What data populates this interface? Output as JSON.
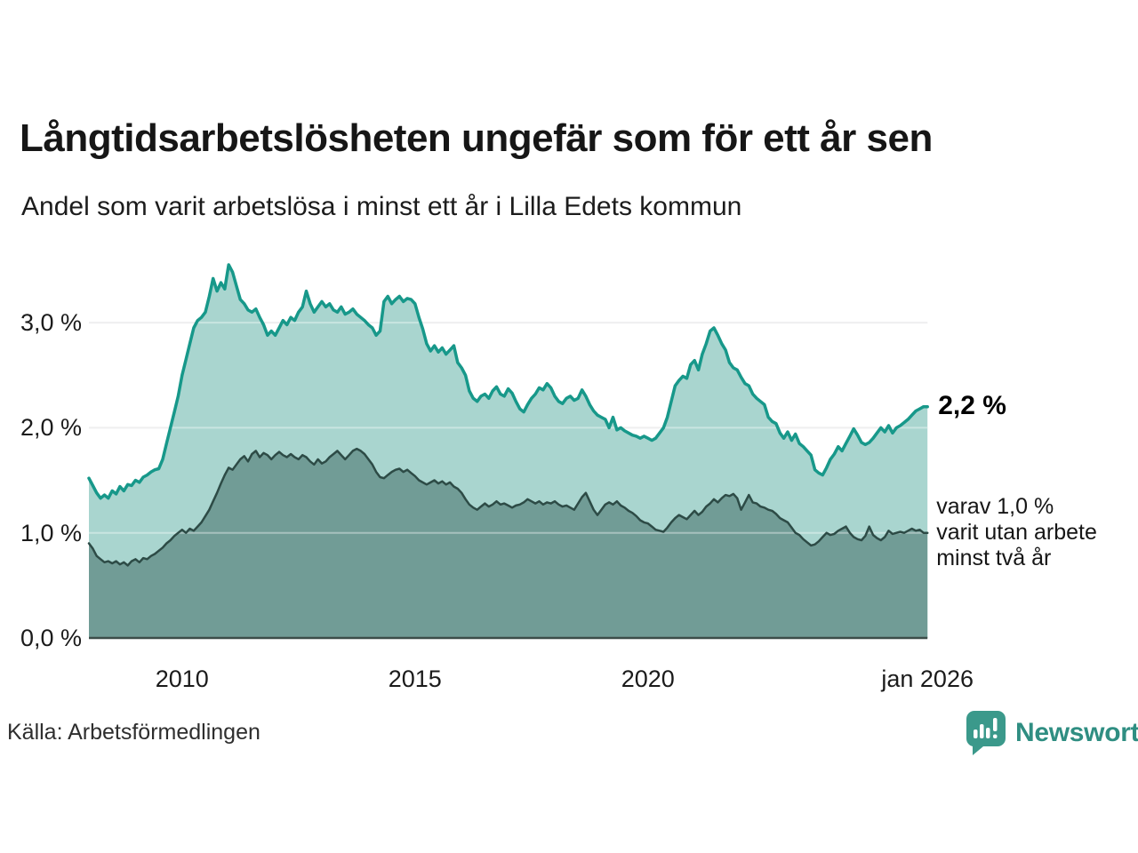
{
  "header": {
    "title": "Långtidsarbetslösheten ungefär som för ett år sen",
    "subtitle": "Andel som varit arbetslösa i minst ett år i Lilla Edets kommun"
  },
  "footer": {
    "source": "Källa: Arbetsförmedlingen",
    "brand": "Newsworthy",
    "brand_color": "#2f8e82"
  },
  "chart_data": {
    "type": "area",
    "title": "Långtidsarbetslösheten ungefär som för ett år sen",
    "subtitle": "Andel som varit arbetslösa i minst ett år i Lilla Edets kommun",
    "unit": "%",
    "frequency": "monthly",
    "x_start": "2008-01",
    "x_end": "2026-01",
    "ylim": [
      0,
      3.8
    ],
    "grid": true,
    "legend_position": "direct-labels-right",
    "x_ticks": [
      {
        "value": 2010,
        "label": "2010"
      },
      {
        "value": 2015,
        "label": "2015"
      },
      {
        "value": 2020,
        "label": "2020"
      },
      {
        "value": 2026,
        "label": "jan 2026"
      }
    ],
    "y_ticks": [
      {
        "value": 0,
        "label": "0,0 %"
      },
      {
        "value": 1,
        "label": "1,0 %"
      },
      {
        "value": 2,
        "label": "2,0 %"
      },
      {
        "value": 3,
        "label": "3,0 %"
      }
    ],
    "colors": {
      "grid": "#e5e5e7",
      "grid_over_fill": "rgba(255,255,255,0.38)",
      "baseline": "#3c4d49"
    },
    "series": [
      {
        "name": "Andel arbetslösa minst ett år",
        "line_color": "#17988a",
        "fill_color": "#a9d5cf",
        "line_width": 3.5,
        "end_label": "2,2 %",
        "values": [
          1.52,
          1.45,
          1.38,
          1.33,
          1.36,
          1.33,
          1.4,
          1.37,
          1.44,
          1.4,
          1.46,
          1.45,
          1.5,
          1.48,
          1.53,
          1.55,
          1.58,
          1.6,
          1.61,
          1.7,
          1.85,
          2.0,
          2.15,
          2.3,
          2.5,
          2.65,
          2.8,
          2.95,
          3.02,
          3.05,
          3.1,
          3.25,
          3.42,
          3.3,
          3.38,
          3.32,
          3.55,
          3.48,
          3.35,
          3.22,
          3.18,
          3.12,
          3.1,
          3.13,
          3.05,
          2.98,
          2.88,
          2.92,
          2.88,
          2.95,
          3.02,
          2.98,
          3.05,
          3.02,
          3.1,
          3.15,
          3.3,
          3.18,
          3.1,
          3.15,
          3.2,
          3.15,
          3.18,
          3.12,
          3.1,
          3.15,
          3.08,
          3.1,
          3.13,
          3.08,
          3.05,
          3.02,
          2.98,
          2.95,
          2.88,
          2.92,
          3.2,
          3.25,
          3.18,
          3.22,
          3.25,
          3.2,
          3.23,
          3.22,
          3.18,
          3.05,
          2.94,
          2.8,
          2.73,
          2.78,
          2.72,
          2.76,
          2.7,
          2.74,
          2.78,
          2.62,
          2.57,
          2.5,
          2.35,
          2.28,
          2.25,
          2.3,
          2.32,
          2.28,
          2.35,
          2.39,
          2.32,
          2.3,
          2.37,
          2.33,
          2.25,
          2.18,
          2.15,
          2.22,
          2.28,
          2.32,
          2.38,
          2.36,
          2.42,
          2.38,
          2.3,
          2.25,
          2.23,
          2.28,
          2.3,
          2.26,
          2.28,
          2.36,
          2.3,
          2.22,
          2.16,
          2.12,
          2.1,
          2.08,
          2.0,
          2.1,
          1.98,
          2.0,
          1.97,
          1.95,
          1.93,
          1.92,
          1.9,
          1.92,
          1.9,
          1.88,
          1.9,
          1.95,
          2.0,
          2.1,
          2.25,
          2.4,
          2.45,
          2.49,
          2.47,
          2.6,
          2.64,
          2.55,
          2.7,
          2.8,
          2.92,
          2.95,
          2.88,
          2.8,
          2.74,
          2.62,
          2.57,
          2.55,
          2.48,
          2.42,
          2.4,
          2.32,
          2.28,
          2.25,
          2.22,
          2.1,
          2.06,
          2.04,
          1.95,
          1.9,
          1.96,
          1.88,
          1.94,
          1.85,
          1.82,
          1.78,
          1.74,
          1.6,
          1.57,
          1.55,
          1.62,
          1.7,
          1.75,
          1.82,
          1.78,
          1.85,
          1.92,
          1.99,
          1.93,
          1.86,
          1.84,
          1.86,
          1.9,
          1.95,
          2.0,
          1.96,
          2.02,
          1.95,
          2.0,
          2.02,
          2.05,
          2.08,
          2.12,
          2.16,
          2.18,
          2.2,
          2.2
        ]
      },
      {
        "name": "varav utan arbete minst två år",
        "line_color": "#2d4b46",
        "fill_color": "#719c96",
        "line_width": 2.5,
        "end_label_lines": [
          "varav 1,0 %",
          "varit utan arbete",
          "minst två år"
        ],
        "values": [
          0.9,
          0.85,
          0.78,
          0.75,
          0.72,
          0.73,
          0.71,
          0.73,
          0.7,
          0.72,
          0.69,
          0.73,
          0.75,
          0.72,
          0.76,
          0.75,
          0.78,
          0.8,
          0.83,
          0.86,
          0.9,
          0.93,
          0.97,
          1.0,
          1.03,
          1.0,
          1.04,
          1.02,
          1.06,
          1.1,
          1.16,
          1.22,
          1.3,
          1.38,
          1.47,
          1.55,
          1.62,
          1.6,
          1.65,
          1.7,
          1.73,
          1.68,
          1.75,
          1.78,
          1.72,
          1.76,
          1.74,
          1.7,
          1.74,
          1.77,
          1.74,
          1.72,
          1.75,
          1.72,
          1.7,
          1.74,
          1.72,
          1.68,
          1.65,
          1.7,
          1.66,
          1.68,
          1.72,
          1.75,
          1.78,
          1.74,
          1.7,
          1.74,
          1.78,
          1.8,
          1.78,
          1.75,
          1.7,
          1.65,
          1.58,
          1.53,
          1.52,
          1.55,
          1.58,
          1.6,
          1.61,
          1.58,
          1.6,
          1.57,
          1.54,
          1.5,
          1.48,
          1.46,
          1.48,
          1.5,
          1.47,
          1.49,
          1.46,
          1.48,
          1.44,
          1.42,
          1.38,
          1.32,
          1.27,
          1.24,
          1.22,
          1.25,
          1.28,
          1.25,
          1.27,
          1.3,
          1.27,
          1.28,
          1.26,
          1.24,
          1.26,
          1.27,
          1.29,
          1.32,
          1.3,
          1.28,
          1.3,
          1.27,
          1.29,
          1.28,
          1.3,
          1.27,
          1.25,
          1.26,
          1.24,
          1.22,
          1.28,
          1.34,
          1.38,
          1.3,
          1.22,
          1.17,
          1.22,
          1.27,
          1.29,
          1.27,
          1.3,
          1.26,
          1.24,
          1.21,
          1.19,
          1.16,
          1.12,
          1.1,
          1.09,
          1.06,
          1.03,
          1.02,
          1.01,
          1.05,
          1.1,
          1.14,
          1.17,
          1.15,
          1.13,
          1.17,
          1.21,
          1.17,
          1.2,
          1.25,
          1.28,
          1.32,
          1.29,
          1.33,
          1.36,
          1.35,
          1.37,
          1.33,
          1.22,
          1.29,
          1.36,
          1.29,
          1.28,
          1.25,
          1.24,
          1.22,
          1.21,
          1.18,
          1.14,
          1.12,
          1.1,
          1.05,
          1.0,
          0.98,
          0.94,
          0.91,
          0.88,
          0.89,
          0.92,
          0.96,
          1.0,
          0.98,
          0.99,
          1.02,
          1.04,
          1.06,
          1.0,
          0.96,
          0.94,
          0.93,
          0.97,
          1.06,
          0.98,
          0.95,
          0.93,
          0.96,
          1.02,
          0.99,
          1.0,
          1.01,
          1.0,
          1.02,
          1.04,
          1.02,
          1.03,
          1.0,
          1.0
        ]
      }
    ]
  }
}
